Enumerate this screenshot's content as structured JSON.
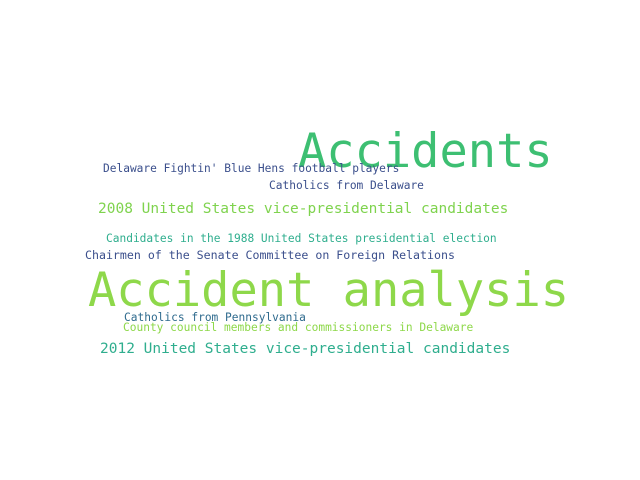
{
  "word_cloud": {
    "words": [
      {
        "text": "Accidents",
        "color": "#3dbf72"
      },
      {
        "text": "Delaware Fightin' Blue Hens football players",
        "color": "#3b4f8c"
      },
      {
        "text": "Catholics from Delaware",
        "color": "#3b4f8c"
      },
      {
        "text": "2008 United States vice-presidential candidates",
        "color": "#7fd34e"
      },
      {
        "text": "Candidates in the 1988 United States presidential election",
        "color": "#2fae8e"
      },
      {
        "text": "Chairmen of the Senate Committee on Foreign Relations",
        "color": "#3b4f8c"
      },
      {
        "text": "Accident analysis",
        "color": "#8ed84a"
      },
      {
        "text": "Catholics from Pennsylvania",
        "color": "#2f6b8e"
      },
      {
        "text": "County council members and commissioners in Delaware",
        "color": "#8ed84a"
      },
      {
        "text": "2012 United States vice-presidential candidates",
        "color": "#2fae8e"
      }
    ]
  }
}
